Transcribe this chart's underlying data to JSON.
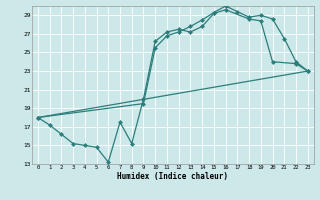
{
  "xlabel": "Humidex (Indice chaleur)",
  "bg_color": "#cce8e8",
  "grid_color": "#ffffff",
  "line_color": "#2d7d7d",
  "xlim": [
    -0.5,
    23.5
  ],
  "ylim": [
    13,
    30
  ],
  "xticks": [
    0,
    1,
    2,
    3,
    4,
    5,
    6,
    7,
    8,
    9,
    10,
    11,
    12,
    13,
    14,
    15,
    16,
    17,
    18,
    19,
    20,
    21,
    22,
    23
  ],
  "yticks": [
    13,
    15,
    17,
    19,
    21,
    23,
    25,
    27,
    29
  ],
  "series1_x": [
    0,
    1,
    2,
    3,
    4,
    5,
    6,
    7,
    8,
    9,
    10,
    11,
    12,
    13,
    14,
    15,
    16,
    18,
    19,
    20,
    22,
    23
  ],
  "series1_y": [
    18.0,
    17.2,
    16.2,
    15.2,
    15.0,
    14.8,
    13.2,
    17.5,
    15.2,
    20.0,
    26.2,
    27.2,
    27.5,
    27.2,
    27.8,
    29.2,
    29.6,
    28.6,
    28.4,
    24.0,
    23.8,
    23.0
  ],
  "series2_x": [
    0,
    9,
    10,
    11,
    12,
    13,
    14,
    15,
    16,
    17,
    18,
    19,
    20,
    21,
    22,
    23
  ],
  "series2_y": [
    18.0,
    19.5,
    25.5,
    26.8,
    27.2,
    27.8,
    28.5,
    29.3,
    30.0,
    29.4,
    28.8,
    29.0,
    28.6,
    26.5,
    24.0,
    23.0
  ],
  "series3_x": [
    0,
    23
  ],
  "series3_y": [
    18.0,
    23.0
  ]
}
